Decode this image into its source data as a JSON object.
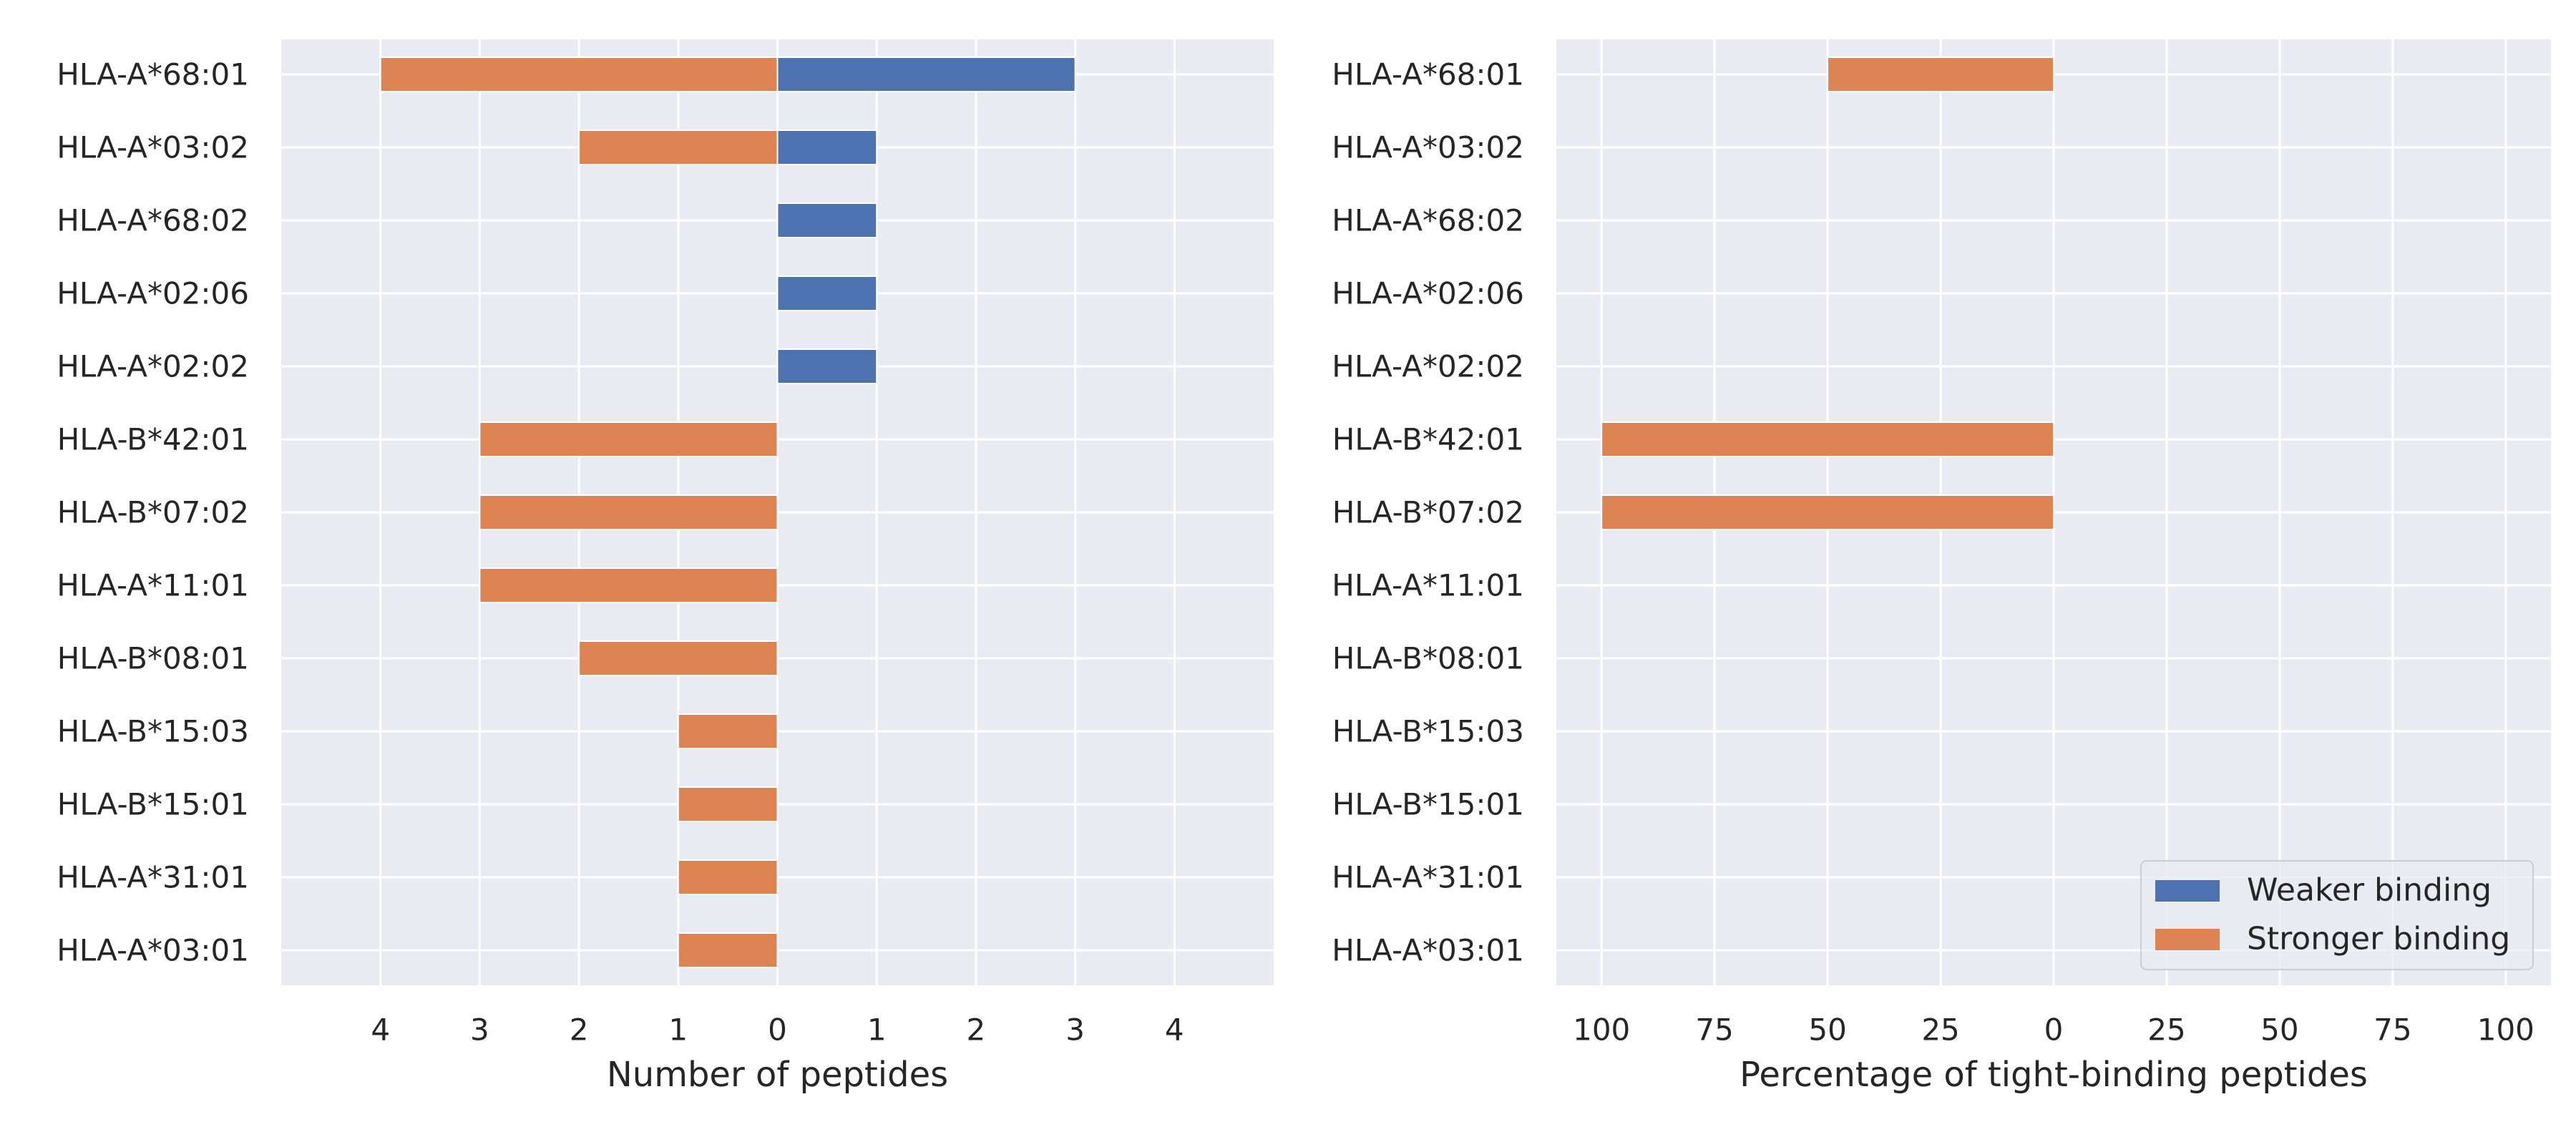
{
  "chart_data": [
    {
      "type": "bar",
      "orientation": "horizontal",
      "categories": [
        "HLA-A*68:01",
        "HLA-A*03:02",
        "HLA-A*68:02",
        "HLA-A*02:06",
        "HLA-A*02:02",
        "HLA-B*42:01",
        "HLA-B*07:02",
        "HLA-A*11:01",
        "HLA-B*08:01",
        "HLA-B*15:03",
        "HLA-B*15:01",
        "HLA-A*31:01",
        "HLA-A*03:01"
      ],
      "series": [
        {
          "name": "Weaker binding",
          "color": "#4c72b0",
          "direction": "right",
          "values": [
            3,
            1,
            1,
            1,
            1,
            0,
            0,
            0,
            0,
            0,
            0,
            0,
            0
          ]
        },
        {
          "name": "Stronger binding",
          "color": "#dd8452",
          "direction": "left",
          "values": [
            4,
            2,
            0,
            0,
            0,
            3,
            3,
            3,
            2,
            1,
            1,
            1,
            1
          ]
        }
      ],
      "xlabel": "Number of peptides",
      "xlim": [
        -5,
        5
      ],
      "xticks": [
        -4,
        -3,
        -2,
        -1,
        0,
        1,
        2,
        3,
        4
      ],
      "xtick_labels": [
        "4",
        "3",
        "2",
        "1",
        "0",
        "1",
        "2",
        "3",
        "4"
      ],
      "grid": true
    },
    {
      "type": "bar",
      "orientation": "horizontal",
      "categories": [
        "HLA-A*68:01",
        "HLA-A*03:02",
        "HLA-A*68:02",
        "HLA-A*02:06",
        "HLA-A*02:02",
        "HLA-B*42:01",
        "HLA-B*07:02",
        "HLA-A*11:01",
        "HLA-B*08:01",
        "HLA-B*15:03",
        "HLA-B*15:01",
        "HLA-A*31:01",
        "HLA-A*03:01"
      ],
      "series": [
        {
          "name": "Weaker binding",
          "color": "#4c72b0",
          "direction": "right",
          "values": [
            0,
            0,
            0,
            0,
            0,
            0,
            0,
            0,
            0,
            0,
            0,
            0,
            0
          ]
        },
        {
          "name": "Stronger binding",
          "color": "#dd8452",
          "direction": "left",
          "values": [
            50,
            0,
            0,
            0,
            0,
            100,
            100,
            0,
            0,
            0,
            0,
            0,
            0
          ]
        }
      ],
      "xlabel": "Percentage of tight-binding peptides",
      "xlim": [
        -110,
        110
      ],
      "xticks": [
        -100,
        -75,
        -50,
        -25,
        0,
        25,
        50,
        75,
        100
      ],
      "xtick_labels": [
        "100",
        "75",
        "50",
        "25",
        "0",
        "25",
        "50",
        "75",
        "100"
      ],
      "grid": true,
      "legend": {
        "placement": "lower-right",
        "entries": [
          "Weaker binding",
          "Stronger binding"
        ]
      }
    }
  ],
  "colors": {
    "axes_background": "#eaeaf2",
    "grid": "#ffffff",
    "text": "#262626"
  }
}
